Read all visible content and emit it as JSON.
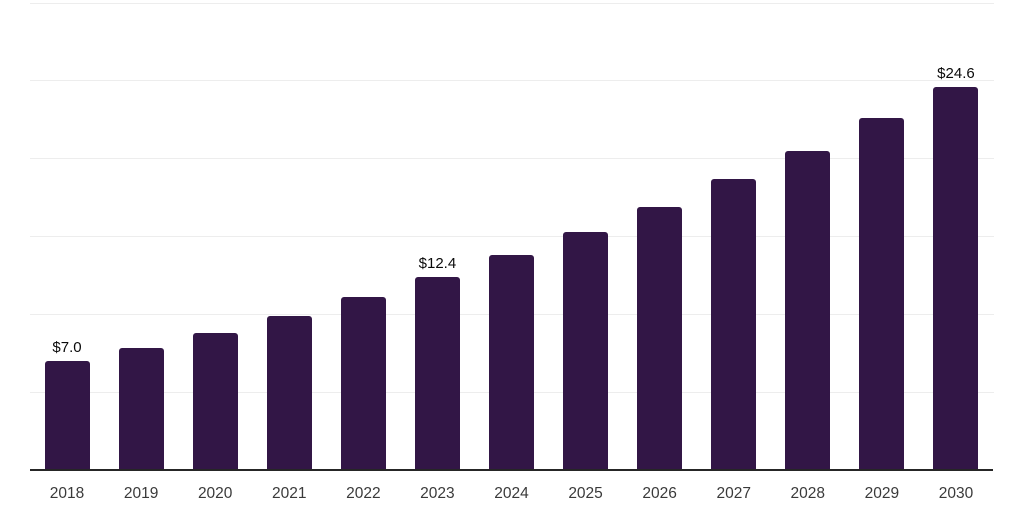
{
  "chart_data": {
    "type": "bar",
    "title": "",
    "xlabel": "",
    "ylabel": "",
    "categories": [
      "2018",
      "2019",
      "2020",
      "2021",
      "2022",
      "2023",
      "2024",
      "2025",
      "2026",
      "2027",
      "2028",
      "2029",
      "2030"
    ],
    "values": [
      7.0,
      7.8,
      8.8,
      9.9,
      11.1,
      12.4,
      13.8,
      15.3,
      16.9,
      18.7,
      20.5,
      22.6,
      24.6
    ],
    "value_labels": [
      "$7.0",
      "",
      "",
      "",
      "",
      "$12.4",
      "",
      "",
      "",
      "",
      "",
      "",
      "$24.6"
    ],
    "ylim": [
      0,
      30
    ],
    "grid_step": 5,
    "grid": true,
    "legend": "none",
    "colors": {
      "bar": "#321646",
      "gridline": "#ededed",
      "axis_line": "#262626",
      "value_label": "#0a0a0a",
      "tick_label": "#3a3a3a",
      "background": "#ffffff"
    }
  }
}
